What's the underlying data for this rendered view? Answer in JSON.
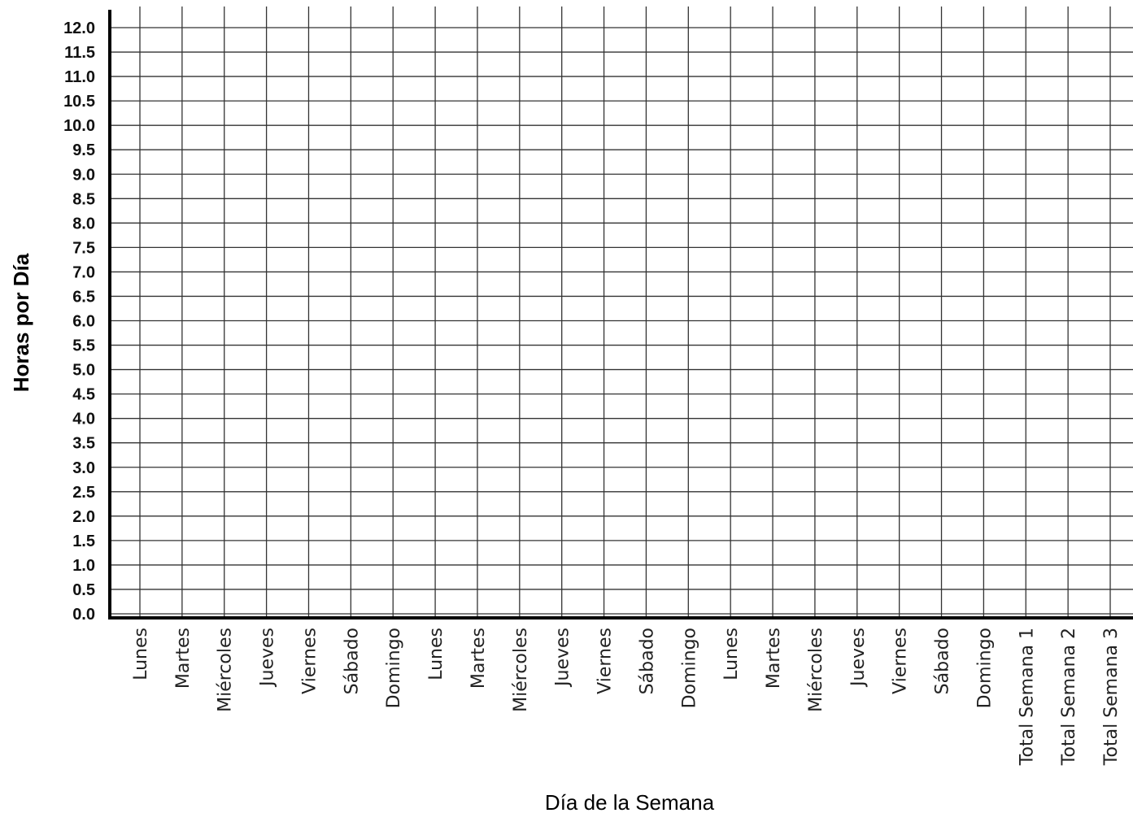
{
  "chart_data": {
    "type": "bar",
    "title": "",
    "xlabel": "Día de la Semana",
    "ylabel": "Horas por Día",
    "ylim": [
      0,
      12
    ],
    "y_step": 0.5,
    "y_tick_labels": [
      "0.0",
      "0.5",
      "1.0",
      "1.5",
      "2.0",
      "2.5",
      "3.0",
      "3.5",
      "4.0",
      "4.5",
      "5.0",
      "5.5",
      "6.0",
      "6.5",
      "7.0",
      "7.5",
      "8.0",
      "8.5",
      "9.0",
      "9.5",
      "10.0",
      "10.5",
      "11.0",
      "11.5",
      "12.0"
    ],
    "categories": [
      "Lunes",
      "Martes",
      "Miércoles",
      "Jueves",
      "Viernes",
      "Sábado",
      "Domingo",
      "Lunes",
      "Martes",
      "Miércoles",
      "Jueves",
      "Viernes",
      "Sábado",
      "Domingo",
      "Lunes",
      "Martes",
      "Miércoles",
      "Jueves",
      "Viernes",
      "Sábado",
      "Domingo",
      "Total Semana 1",
      "Total Semana 2",
      "Total Semana 3"
    ],
    "series": [],
    "grid": true,
    "legend": "none"
  }
}
